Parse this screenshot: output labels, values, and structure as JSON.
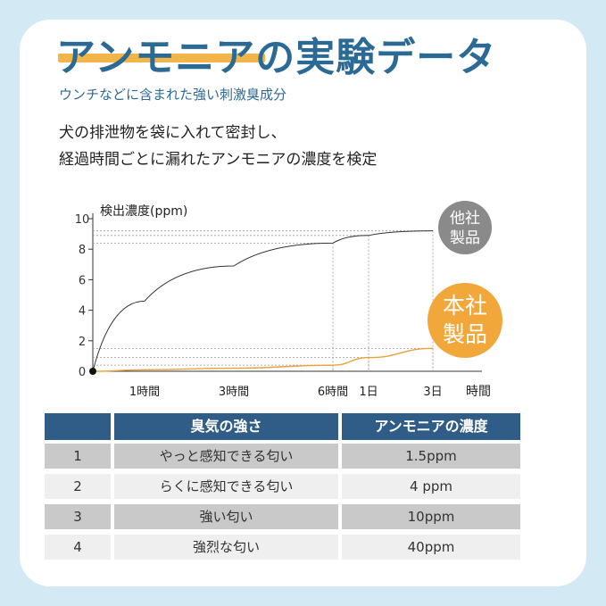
{
  "title": "アンモニアの実験データ",
  "subtitle": "ウンチなどに含まれた強い刺激臭成分",
  "description": [
    "犬の排泄物を袋に入れて密封し、",
    "経過時間ごとに漏れたアンモニアの濃度を検定"
  ],
  "chart_data": {
    "type": "line",
    "ylabel": "検出濃度(ppm)",
    "xlabel": "時間",
    "y_ticks": [
      "0",
      "2",
      "4",
      "6",
      "8",
      "10"
    ],
    "x_ticks": [
      "1時間",
      "3時間",
      "6時間",
      "1日",
      "3日"
    ],
    "ylim": [
      0,
      10
    ],
    "series": [
      {
        "name": "他社製品",
        "color": "#333333",
        "x": [
          "0",
          "1時間",
          "3時間",
          "6時間",
          "1日",
          "3日"
        ],
        "values": [
          0,
          4.6,
          6.9,
          8.4,
          8.9,
          9.2
        ]
      },
      {
        "name": "本社製品",
        "color": "#e9a13b",
        "x": [
          "0",
          "1時間",
          "3時間",
          "6時間",
          "1日",
          "3日"
        ],
        "values": [
          0,
          0.1,
          0.2,
          0.4,
          0.9,
          1.5
        ]
      }
    ],
    "badges": {
      "other": "他社製品",
      "ours": "本社製品"
    },
    "badge_colors": {
      "other": "#8a8a8a",
      "ours": "#f2a73a"
    }
  },
  "table": {
    "headers": [
      "",
      "臭気の強さ",
      "アンモニアの濃度"
    ],
    "rows": [
      [
        "1",
        "やっと感知できる匂い",
        "1.5ppm"
      ],
      [
        "2",
        "らくに感知できる匂い",
        "4 ppm"
      ],
      [
        "3",
        "強い匂い",
        "10ppm"
      ],
      [
        "4",
        "強烈な匂い",
        "40ppm"
      ]
    ]
  }
}
